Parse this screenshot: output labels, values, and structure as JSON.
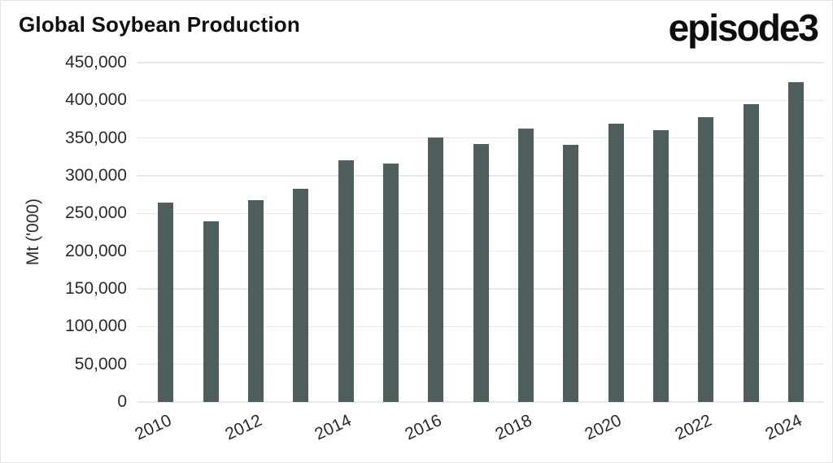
{
  "header": {
    "title": "Global Soybean Production",
    "logo": "episode3"
  },
  "chart_data": {
    "type": "bar",
    "title": "Global Soybean Production",
    "xlabel": "",
    "ylabel": "Mt ('000)",
    "categories": [
      "2010",
      "2011",
      "2012",
      "2013",
      "2014",
      "2015",
      "2016",
      "2017",
      "2018",
      "2019",
      "2020",
      "2021",
      "2022",
      "2023",
      "2024"
    ],
    "values": [
      264000,
      240000,
      268000,
      283000,
      321000,
      316000,
      351000,
      342000,
      363000,
      341000,
      369000,
      360000,
      378000,
      395000,
      424000
    ],
    "ylim": [
      0,
      450000
    ],
    "ytick_step": 50000,
    "ytick_labels": [
      "0",
      "50,000",
      "100,000",
      "150,000",
      "200,000",
      "250,000",
      "300,000",
      "350,000",
      "400,000",
      "450,000"
    ],
    "xtick_labels": [
      "2010",
      "2012",
      "2014",
      "2016",
      "2018",
      "2020",
      "2022",
      "2024"
    ],
    "xtick_indices": [
      0,
      2,
      4,
      6,
      8,
      10,
      12,
      14
    ],
    "grid": true,
    "legend": "none",
    "colors": {
      "bar": "#4d5e5c",
      "grid": "#e8e8e8",
      "tick_text": "#2b2b2b",
      "title_text": "#0f0f0f"
    }
  }
}
